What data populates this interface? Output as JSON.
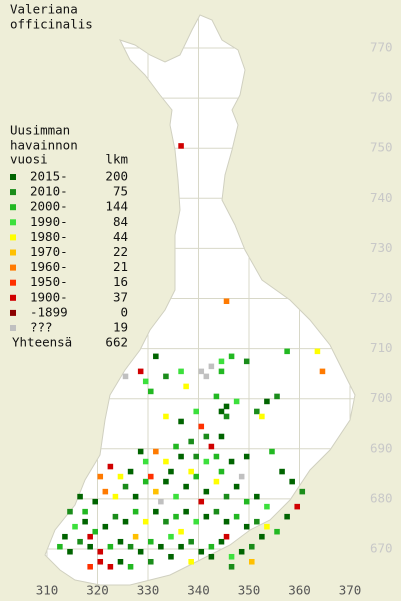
{
  "map": {
    "title": [
      "Valeriana",
      "officinalis"
    ],
    "legend_header": [
      "Uusimman",
      "havainnon",
      "vuosi"
    ],
    "count_header": "lkm",
    "classes": [
      {
        "label": "2015-",
        "count": 200,
        "color": "#006400"
      },
      {
        "label": "2010-",
        "count": 75,
        "color": "#1a8c1a"
      },
      {
        "label": "2000-",
        "count": 144,
        "color": "#22b822"
      },
      {
        "label": "1990-",
        "count": 84,
        "color": "#3ce03c"
      },
      {
        "label": "1980-",
        "count": 44,
        "color": "#ffff00"
      },
      {
        "label": "1970-",
        "count": 22,
        "color": "#ffc000"
      },
      {
        "label": "1960-",
        "count": 21,
        "color": "#ff7a00"
      },
      {
        "label": "1950-",
        "count": 16,
        "color": "#ff3000"
      },
      {
        "label": "1900-",
        "count": 37,
        "color": "#d00000"
      },
      {
        "label": "-1899",
        "count": 0,
        "color": "#8b0000"
      },
      {
        "label": "???",
        "count": 19,
        "color": "#c0c0c0"
      }
    ],
    "total_label": "Yhteensä",
    "total": 662,
    "xlim": [
      310,
      370
    ],
    "ylim": [
      670,
      770
    ],
    "xticks": [
      310,
      320,
      330,
      340,
      350,
      360,
      370
    ],
    "yticks": [
      770,
      760,
      750,
      740,
      730,
      720,
      710,
      700,
      690,
      680,
      670
    ],
    "squares": [
      [
        336,
        750,
        8
      ],
      [
        345,
        719,
        6
      ],
      [
        363,
        709,
        4
      ],
      [
        364,
        705,
        6
      ],
      [
        357,
        709,
        2
      ],
      [
        331,
        708,
        0
      ],
      [
        328,
        705,
        8
      ],
      [
        329,
        703,
        3
      ],
      [
        325,
        704,
        10
      ],
      [
        333,
        704,
        1
      ],
      [
        336,
        705,
        3
      ],
      [
        340,
        705,
        10
      ],
      [
        341,
        704,
        10
      ],
      [
        342,
        706,
        10
      ],
      [
        344,
        705,
        2
      ],
      [
        346,
        708,
        2
      ],
      [
        349,
        707,
        1
      ],
      [
        344,
        707,
        3
      ],
      [
        337,
        702,
        4
      ],
      [
        330,
        701,
        2
      ],
      [
        343,
        700,
        2
      ],
      [
        345,
        698,
        0
      ],
      [
        347,
        699,
        3
      ],
      [
        353,
        699,
        0
      ],
      [
        355,
        700,
        1
      ],
      [
        351,
        697,
        1
      ],
      [
        352,
        696,
        4
      ],
      [
        344,
        697,
        0
      ],
      [
        345,
        696,
        1
      ],
      [
        339,
        697,
        3
      ],
      [
        336,
        695,
        0
      ],
      [
        333,
        696,
        4
      ],
      [
        340,
        694,
        7
      ],
      [
        341,
        692,
        1
      ],
      [
        342,
        690,
        8
      ],
      [
        344,
        692,
        0
      ],
      [
        338,
        691,
        1
      ],
      [
        335,
        690,
        2
      ],
      [
        331,
        689,
        6
      ],
      [
        328,
        689,
        0
      ],
      [
        329,
        687,
        3
      ],
      [
        333,
        687,
        4
      ],
      [
        336,
        688,
        0
      ],
      [
        339,
        688,
        1
      ],
      [
        341,
        687,
        3
      ],
      [
        343,
        688,
        2
      ],
      [
        346,
        687,
        0
      ],
      [
        349,
        688,
        0
      ],
      [
        354,
        689,
        2
      ],
      [
        356,
        685,
        0
      ],
      [
        358,
        683,
        0
      ],
      [
        360,
        681,
        1
      ],
      [
        359,
        678,
        8
      ],
      [
        357,
        676,
        0
      ],
      [
        355,
        673,
        2
      ],
      [
        352,
        672,
        0
      ],
      [
        350,
        670,
        1
      ],
      [
        348,
        669,
        0
      ],
      [
        346,
        668,
        3
      ],
      [
        344,
        671,
        0
      ],
      [
        342,
        670,
        2
      ],
      [
        340,
        669,
        0
      ],
      [
        338,
        671,
        1
      ],
      [
        336,
        670,
        0
      ],
      [
        334,
        672,
        3
      ],
      [
        332,
        670,
        0
      ],
      [
        330,
        671,
        2
      ],
      [
        328,
        669,
        0
      ],
      [
        326,
        670,
        1
      ],
      [
        324,
        671,
        0
      ],
      [
        322,
        670,
        2
      ],
      [
        320,
        669,
        8
      ],
      [
        318,
        670,
        0
      ],
      [
        316,
        671,
        1
      ],
      [
        314,
        669,
        0
      ],
      [
        312,
        670,
        2
      ],
      [
        313,
        672,
        0
      ],
      [
        315,
        674,
        3
      ],
      [
        317,
        675,
        0
      ],
      [
        319,
        673,
        2
      ],
      [
        321,
        674,
        0
      ],
      [
        323,
        676,
        1
      ],
      [
        325,
        675,
        0
      ],
      [
        327,
        677,
        2
      ],
      [
        329,
        675,
        4
      ],
      [
        331,
        677,
        0
      ],
      [
        333,
        675,
        1
      ],
      [
        335,
        676,
        2
      ],
      [
        337,
        677,
        0
      ],
      [
        339,
        675,
        3
      ],
      [
        341,
        676,
        0
      ],
      [
        343,
        677,
        1
      ],
      [
        345,
        675,
        0
      ],
      [
        347,
        676,
        2
      ],
      [
        349,
        674,
        0
      ],
      [
        351,
        675,
        1
      ],
      [
        353,
        674,
        4
      ],
      [
        320,
        667,
        8
      ],
      [
        322,
        666,
        8
      ],
      [
        318,
        666,
        7
      ],
      [
        324,
        667,
        0
      ],
      [
        326,
        666,
        2
      ],
      [
        330,
        667,
        1
      ],
      [
        334,
        668,
        0
      ],
      [
        338,
        667,
        4
      ],
      [
        342,
        668,
        0
      ],
      [
        346,
        666,
        1
      ],
      [
        350,
        667,
        5
      ],
      [
        317,
        677,
        2
      ],
      [
        319,
        679,
        0
      ],
      [
        321,
        681,
        6
      ],
      [
        323,
        680,
        4
      ],
      [
        325,
        682,
        1
      ],
      [
        327,
        680,
        0
      ],
      [
        329,
        683,
        2
      ],
      [
        331,
        681,
        5
      ],
      [
        333,
        683,
        0
      ],
      [
        335,
        680,
        3
      ],
      [
        337,
        682,
        0
      ],
      [
        339,
        684,
        2
      ],
      [
        341,
        681,
        0
      ],
      [
        343,
        683,
        4
      ],
      [
        345,
        680,
        1
      ],
      [
        347,
        682,
        0
      ],
      [
        349,
        679,
        2
      ],
      [
        351,
        680,
        0
      ],
      [
        353,
        678,
        3
      ],
      [
        320,
        684,
        6
      ],
      [
        322,
        686,
        8
      ],
      [
        324,
        684,
        4
      ],
      [
        326,
        685,
        0
      ],
      [
        330,
        684,
        7
      ],
      [
        334,
        685,
        0
      ],
      [
        338,
        685,
        4
      ],
      [
        344,
        685,
        2
      ],
      [
        318,
        672,
        8
      ],
      [
        327,
        672,
        5
      ],
      [
        336,
        673,
        4
      ],
      [
        345,
        672,
        8
      ],
      [
        314,
        677,
        1
      ],
      [
        316,
        680,
        0
      ],
      [
        340,
        679,
        8
      ],
      [
        348,
        684,
        10
      ],
      [
        332,
        679,
        10
      ]
    ]
  }
}
